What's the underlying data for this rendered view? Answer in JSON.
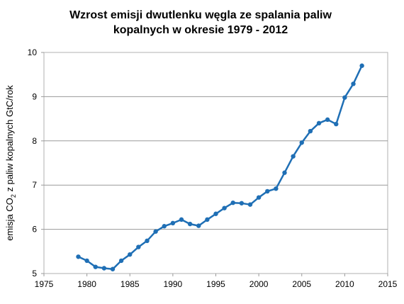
{
  "chart_data": {
    "type": "line",
    "title_lines": [
      "Wzrost emisji dwutlenku węgla ze spalania paliw",
      "kopalnych w okresie 1979 - 2012"
    ],
    "xlabel": "",
    "ylabel": {
      "pre": "emisja CO",
      "sub": "2",
      "post": " z paliw kopalnych GtC/rok"
    },
    "xlim": [
      1975,
      2015
    ],
    "ylim": [
      5,
      10
    ],
    "xticks": [
      1975,
      1980,
      1985,
      1990,
      1995,
      2000,
      2005,
      2010,
      2015
    ],
    "yticks": [
      5,
      6,
      7,
      8,
      9,
      10
    ],
    "grid": "horizontal",
    "line_color": "#1f6fb5",
    "series": [
      {
        "x": [
          1979,
          1980,
          1981,
          1982,
          1983,
          1984,
          1985,
          1986,
          1987,
          1988,
          1989,
          1990,
          1991,
          1992,
          1993,
          1994,
          1995,
          1996,
          1997,
          1998,
          1999,
          2000,
          2001,
          2002,
          2003,
          2004,
          2005,
          2006,
          2007,
          2008,
          2009,
          2010,
          2011,
          2012
        ],
        "values": [
          5.38,
          5.29,
          5.15,
          5.12,
          5.1,
          5.29,
          5.43,
          5.6,
          5.74,
          5.95,
          6.07,
          6.14,
          6.22,
          6.12,
          6.08,
          6.22,
          6.35,
          6.48,
          6.6,
          6.59,
          6.56,
          6.72,
          6.86,
          6.92,
          7.28,
          7.65,
          7.96,
          8.22,
          8.4,
          8.48,
          8.38,
          8.98,
          9.29,
          9.7
        ]
      }
    ]
  }
}
